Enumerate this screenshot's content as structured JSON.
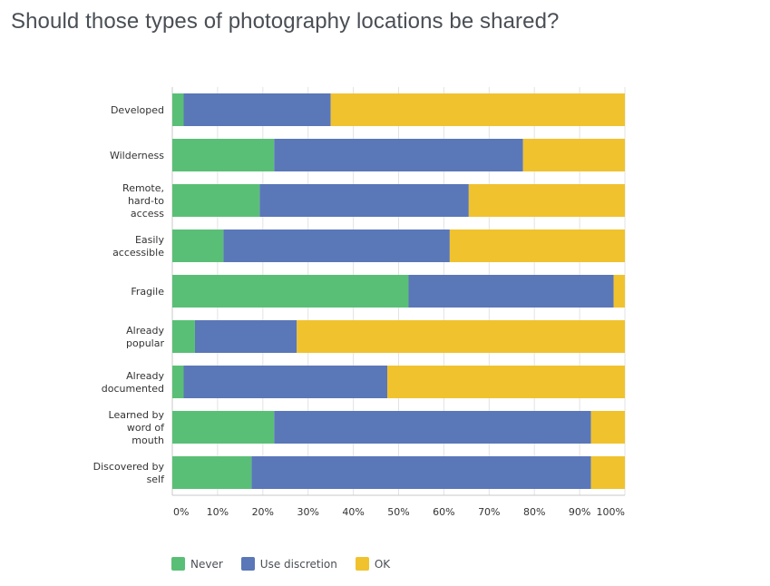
{
  "chart_data": {
    "type": "bar",
    "orientation": "horizontal",
    "stacked": true,
    "title": "Should those types of photography locations be shared?",
    "categories": [
      [
        "Developed"
      ],
      [
        "Wilderness"
      ],
      [
        "Remote,",
        "hard-to",
        "access"
      ],
      [
        "Easily",
        "accessible"
      ],
      [
        "Fragile"
      ],
      [
        "Already",
        "popular"
      ],
      [
        "Already",
        "documented"
      ],
      [
        "Learned by",
        "word of",
        "mouth"
      ],
      [
        "Discovered by",
        "self"
      ]
    ],
    "series": [
      {
        "name": "Never",
        "color": "#5abf76",
        "values": [
          2.5,
          22.5,
          19.3,
          11.3,
          52.2,
          5,
          2.5,
          22.5,
          17.5
        ]
      },
      {
        "name": "Use discretion",
        "color": "#5a77b8",
        "values": [
          32.5,
          55,
          46.2,
          50,
          45.3,
          22.5,
          45,
          70,
          75
        ]
      },
      {
        "name": "OK",
        "color": "#f0c22e",
        "values": [
          65,
          22.5,
          34.5,
          38.7,
          2.5,
          72.5,
          52.5,
          7.5,
          7.5
        ]
      }
    ],
    "x_ticks": [
      "0%",
      "10%",
      "20%",
      "30%",
      "40%",
      "50%",
      "60%",
      "70%",
      "80%",
      "90%",
      "100%"
    ],
    "xlim": [
      0,
      100
    ],
    "grid": true,
    "legend_position": "bottom-left"
  }
}
